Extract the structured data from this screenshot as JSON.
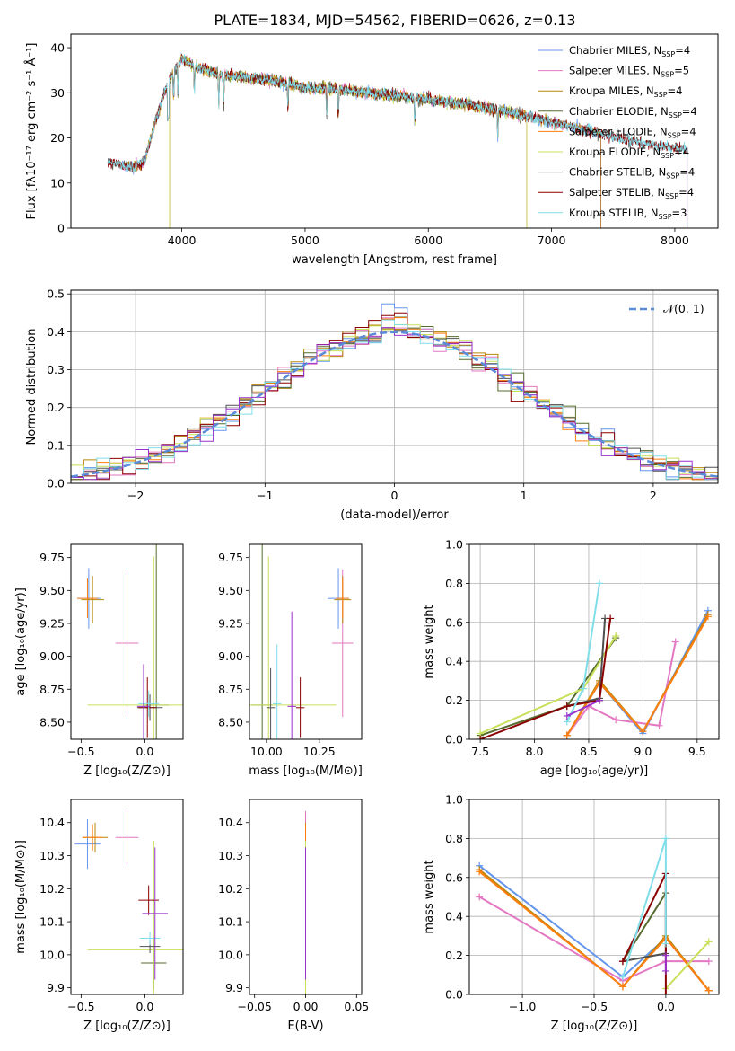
{
  "title": "PLATE=1834, MJD=54562, FIBERID=0626, z=0.13",
  "colors": {
    "series": [
      "#6495ed",
      "#e377c2",
      "#b8860b",
      "#556b2f",
      "#ff7f0e",
      "#c8e05a",
      "#505050",
      "#8b0000",
      "#80deea",
      "#9932cc"
    ],
    "grid": "#b0b0b0",
    "normal_curve": "#5b8bd8"
  },
  "chart_data": [
    {
      "id": "spectrum",
      "type": "line",
      "title": "PLATE=1834, MJD=54562, FIBERID=0626, z=0.13",
      "xlabel": "wavelength [Angstrom, rest frame]",
      "ylabel": "Flux [fλ10⁻¹⁷ erg cm⁻² s⁻¹ Å⁻¹]",
      "xlim": [
        3100,
        8350
      ],
      "ylim": [
        0,
        43
      ],
      "xticks": [
        "4000",
        "5000",
        "6000",
        "7000",
        "8000"
      ],
      "yticks": [
        "0",
        "10",
        "20",
        "30",
        "40"
      ],
      "grid": false,
      "legend_position": "top-right",
      "continuum": {
        "x": [
          3400,
          3500,
          3600,
          3700,
          3800,
          3900,
          4000,
          4100,
          4300,
          4500,
          4800,
          5000,
          5200,
          5500,
          6000,
          6300,
          6600,
          7000,
          7400,
          7800,
          8100
        ],
        "y": [
          14.5,
          14,
          13.5,
          15,
          25,
          33,
          37.5,
          36,
          34,
          33.5,
          32.5,
          31,
          31,
          30,
          28.5,
          27.5,
          26,
          23.5,
          21,
          18.5,
          17.5
        ]
      },
      "series": [
        {
          "name": "Chabrier MILES",
          "nssp": "4",
          "color_index": 0,
          "x_range": [
            3500,
            7400
          ]
        },
        {
          "name": "Salpeter MILES",
          "nssp": "5",
          "color_index": 1,
          "x_range": [
            3500,
            7400
          ]
        },
        {
          "name": "Kroupa MILES",
          "nssp": "4",
          "color_index": 2,
          "x_range": [
            3500,
            7400
          ]
        },
        {
          "name": "Chabrier ELODIE",
          "nssp": "4",
          "color_index": 3,
          "x_range": [
            3900,
            6800
          ]
        },
        {
          "name": "Salpeter ELODIE",
          "nssp": "4",
          "color_index": 4,
          "x_range": [
            3900,
            6800
          ]
        },
        {
          "name": "Kroupa ELODIE",
          "nssp": "4",
          "color_index": 5,
          "x_range": [
            3900,
            6800
          ]
        },
        {
          "name": "Chabrier STELIB",
          "nssp": "4",
          "color_index": 6,
          "x_range": [
            3400,
            8100
          ]
        },
        {
          "name": "Salpeter STELIB",
          "nssp": "4",
          "color_index": 7,
          "x_range": [
            3400,
            8100
          ]
        },
        {
          "name": "Kroupa STELIB",
          "nssp": "3",
          "color_index": 8,
          "x_range": [
            3400,
            8100
          ]
        }
      ]
    },
    {
      "id": "residuals",
      "type": "histogram",
      "xlabel": "(data-model)/error",
      "ylabel": "Normed distribution",
      "xlim": [
        -2.5,
        2.5
      ],
      "ylim": [
        0,
        0.51
      ],
      "xticks": [
        "−2",
        "−1",
        "0",
        "1",
        "2"
      ],
      "yticks": [
        "0.0",
        "0.1",
        "0.2",
        "0.3",
        "0.4",
        "0.5"
      ],
      "grid": true,
      "legend_position": "top-right",
      "legend_label": "𝒩(0, 1)",
      "bins": 50,
      "bin_range": [
        -2.5,
        2.5
      ],
      "peak_spike": [
        0.49,
        0.45,
        0.43,
        0.47,
        0.46,
        0.44,
        0.42,
        0.48,
        0.45,
        0.43
      ]
    },
    {
      "id": "age_vs_Z",
      "type": "scatter",
      "xlabel": "Z [log₁₀(Z/Z⊙)]",
      "ylabel": "age  [log₁₀(age/yr)]",
      "xlim": [
        -0.58,
        0.3
      ],
      "ylim": [
        8.37,
        9.85
      ],
      "xticks": [
        "−0.5",
        "0.0"
      ],
      "yticks": [
        "8.50",
        "8.75",
        "9.00",
        "9.25",
        "9.50",
        "9.75"
      ],
      "points": [
        {
          "x": -0.44,
          "y": 9.44,
          "xerr": 0.09,
          "yerr": 0.23,
          "color_index": 0
        },
        {
          "x": -0.14,
          "y": 9.1,
          "xerr": 0.09,
          "yerr": 0.56,
          "color_index": 1
        },
        {
          "x": -0.41,
          "y": 9.43,
          "xerr": 0.09,
          "yerr": 0.18,
          "color_index": 2
        },
        {
          "x": 0.09,
          "y": 8.63,
          "xerr": 0.1,
          "yerr": 1.23,
          "color_index": 3
        },
        {
          "x": -0.45,
          "y": 9.44,
          "xerr": 0.08,
          "yerr": 0.15,
          "color_index": 4
        },
        {
          "x": 0.07,
          "y": 8.63,
          "xerr": 0.52,
          "yerr": 1.13,
          "color_index": 5
        },
        {
          "x": 0.04,
          "y": 8.61,
          "xerr": 0.1,
          "yerr": 0.1,
          "color_index": 6
        },
        {
          "x": 0.02,
          "y": 8.61,
          "xerr": 0.07,
          "yerr": 0.23,
          "color_index": 7
        },
        {
          "x": 0.03,
          "y": 8.64,
          "xerr": 0.08,
          "yerr": 0.1,
          "color_index": 8
        },
        {
          "x": -0.01,
          "y": 8.62,
          "xerr": 0.05,
          "yerr": 0.32,
          "color_index": 9
        }
      ]
    },
    {
      "id": "age_vs_mass",
      "type": "scatter",
      "xlabel": "mass [log₁₀(M/M⊙)]",
      "ylabel": "",
      "xlim": [
        9.92,
        10.45
      ],
      "ylim": [
        8.37,
        9.85
      ],
      "xticks": [
        "10.00",
        "10.25"
      ],
      "yticks": [
        "8.50",
        "8.75",
        "9.00",
        "9.25",
        "9.50",
        "9.75"
      ],
      "points": [
        {
          "x": 10.34,
          "y": 9.44,
          "xerr": 0.05,
          "yerr": 0.23,
          "color_index": 0
        },
        {
          "x": 10.36,
          "y": 9.1,
          "xerr": 0.05,
          "yerr": 0.56,
          "color_index": 1
        },
        {
          "x": 10.36,
          "y": 9.43,
          "xerr": 0.04,
          "yerr": 0.18,
          "color_index": 2
        },
        {
          "x": 9.98,
          "y": 8.63,
          "xerr": 0.05,
          "yerr": 1.23,
          "color_index": 3
        },
        {
          "x": 10.36,
          "y": 9.44,
          "xerr": 0.03,
          "yerr": 0.15,
          "color_index": 4
        },
        {
          "x": 10.01,
          "y": 8.63,
          "xerr": 0.32,
          "yerr": 1.13,
          "color_index": 5
        },
        {
          "x": 10.02,
          "y": 8.61,
          "xerr": 0.02,
          "yerr": 0.3,
          "color_index": 6
        },
        {
          "x": 10.16,
          "y": 8.61,
          "xerr": 0.02,
          "yerr": 0.23,
          "color_index": 7
        },
        {
          "x": 10.05,
          "y": 8.64,
          "xerr": 0.02,
          "yerr": 0.45,
          "color_index": 8
        },
        {
          "x": 10.12,
          "y": 8.62,
          "xerr": 0.02,
          "yerr": 0.72,
          "color_index": 9
        }
      ]
    },
    {
      "id": "weight_vs_age",
      "type": "line",
      "xlabel": "age  [log₁₀(age/yr)]",
      "ylabel": "mass weight",
      "xlim": [
        7.4,
        9.7
      ],
      "ylim": [
        0,
        1
      ],
      "xticks": [
        "7.5",
        "8.0",
        "8.5",
        "9.0",
        "9.5"
      ],
      "yticks": [
        "0.0",
        "0.2",
        "0.4",
        "0.6",
        "0.8",
        "1.0"
      ],
      "grid": true,
      "series": [
        {
          "color_index": 0,
          "x": [
            8.3,
            8.6,
            9.0,
            9.6
          ],
          "y": [
            0.02,
            0.29,
            0.03,
            0.66
          ]
        },
        {
          "color_index": 1,
          "x": [
            8.3,
            8.5,
            8.75,
            9.15,
            9.3
          ],
          "y": [
            0.02,
            0.17,
            0.1,
            0.07,
            0.5
          ]
        },
        {
          "color_index": 2,
          "x": [
            8.3,
            8.6,
            9.0,
            9.6
          ],
          "y": [
            0.02,
            0.3,
            0.04,
            0.64
          ]
        },
        {
          "color_index": 3,
          "x": [
            7.5,
            8.3,
            8.75
          ],
          "y": [
            0.02,
            0.17,
            0.52
          ]
        },
        {
          "color_index": 4,
          "x": [
            8.3,
            8.6,
            9.0,
            9.6
          ],
          "y": [
            0.02,
            0.29,
            0.04,
            0.63
          ]
        },
        {
          "color_index": 5,
          "x": [
            7.5,
            8.45,
            8.75
          ],
          "y": [
            0.03,
            0.26,
            0.53
          ]
        },
        {
          "color_index": 6,
          "x": [
            8.3,
            8.6,
            8.65
          ],
          "y": [
            0.17,
            0.21,
            0.62
          ]
        },
        {
          "color_index": 7,
          "x": [
            7.5,
            8.3,
            8.6,
            8.7
          ],
          "y": [
            0.0,
            0.17,
            0.2,
            0.62
          ]
        },
        {
          "color_index": 8,
          "x": [
            8.3,
            8.45,
            8.6
          ],
          "y": [
            0.09,
            0.26,
            0.8
          ]
        },
        {
          "color_index": 9,
          "x": [
            8.3,
            8.6
          ],
          "y": [
            0.12,
            0.2
          ]
        }
      ]
    },
    {
      "id": "mass_vs_Z",
      "type": "scatter",
      "xlabel": "Z [log₁₀(Z/Z⊙)]",
      "ylabel": "mass [log₁₀(M/M⊙)]",
      "xlim": [
        -0.58,
        0.3
      ],
      "ylim": [
        9.88,
        10.47
      ],
      "xticks": [
        "−0.5",
        "0.0"
      ],
      "yticks": [
        "9.9",
        "10.0",
        "10.1",
        "10.2",
        "10.3",
        "10.4"
      ],
      "points": [
        {
          "x": -0.45,
          "y": 10.335,
          "xerr": 0.1,
          "yerr": 0.075,
          "color_index": 0
        },
        {
          "x": -0.14,
          "y": 10.355,
          "xerr": 0.09,
          "yerr": 0.08,
          "color_index": 1
        },
        {
          "x": -0.39,
          "y": 10.355,
          "xerr": 0.1,
          "yerr": 0.045,
          "color_index": 2
        },
        {
          "x": 0.07,
          "y": 9.975,
          "xerr": 0.1,
          "yerr": 0.08,
          "color_index": 3
        },
        {
          "x": -0.41,
          "y": 10.355,
          "xerr": 0.08,
          "yerr": 0.04,
          "color_index": 4
        },
        {
          "x": 0.07,
          "y": 10.015,
          "xerr": 0.52,
          "yerr": 0.33,
          "color_index": 5
        },
        {
          "x": 0.04,
          "y": 10.025,
          "xerr": 0.08,
          "yerr": 0.02,
          "color_index": 6
        },
        {
          "x": 0.03,
          "y": 10.165,
          "xerr": 0.08,
          "yerr": 0.045,
          "color_index": 7
        },
        {
          "x": 0.04,
          "y": 10.05,
          "xerr": 0.08,
          "yerr": 0.02,
          "color_index": 8
        },
        {
          "x": 0.08,
          "y": 10.125,
          "xerr": 0.1,
          "yerr": 0.2,
          "color_index": 9
        }
      ]
    },
    {
      "id": "mass_vs_ebv",
      "type": "scatter",
      "xlabel": "E(B-V)",
      "ylabel": "",
      "xlim": [
        -0.055,
        0.055
      ],
      "ylim": [
        9.88,
        10.47
      ],
      "xticks": [
        "−0.05",
        "0.00",
        "0.05"
      ],
      "yticks": [
        "9.9",
        "10.0",
        "10.1",
        "10.2",
        "10.3",
        "10.4"
      ],
      "points": [
        {
          "x": 0.0,
          "y": 10.335,
          "xerr": 0.0,
          "yerr": 0.075,
          "color_index": 0
        },
        {
          "x": 0.0,
          "y": 10.355,
          "xerr": 0.0,
          "yerr": 0.08,
          "color_index": 1
        },
        {
          "x": 0.0,
          "y": 10.355,
          "xerr": 0.0,
          "yerr": 0.045,
          "color_index": 2
        },
        {
          "x": 0.0,
          "y": 9.975,
          "xerr": 0.0,
          "yerr": 0.08,
          "color_index": 3
        },
        {
          "x": 0.0,
          "y": 10.355,
          "xerr": 0.0,
          "yerr": 0.04,
          "color_index": 4
        },
        {
          "x": 0.0,
          "y": 10.015,
          "xerr": 0.0,
          "yerr": 0.33,
          "color_index": 5
        },
        {
          "x": 0.0,
          "y": 10.025,
          "xerr": 0.0,
          "yerr": 0.02,
          "color_index": 6
        },
        {
          "x": 0.0,
          "y": 10.165,
          "xerr": 0.0,
          "yerr": 0.045,
          "color_index": 7
        },
        {
          "x": 0.0,
          "y": 10.05,
          "xerr": 0.0,
          "yerr": 0.02,
          "color_index": 8
        },
        {
          "x": 0.0,
          "y": 10.125,
          "xerr": 0.0,
          "yerr": 0.2,
          "color_index": 9
        }
      ]
    },
    {
      "id": "weight_vs_Z",
      "type": "line",
      "xlabel": "Z [log₁₀(Z/Z⊙)]",
      "ylabel": "mass weight",
      "xlim": [
        -1.37,
        0.37
      ],
      "ylim": [
        0,
        1
      ],
      "xticks": [
        "−1.0",
        "−0.5",
        "0.0"
      ],
      "yticks": [
        "0.0",
        "0.2",
        "0.4",
        "0.6",
        "0.8",
        "1.0"
      ],
      "grid": true,
      "series": [
        {
          "color_index": 0,
          "x": [
            -1.3,
            -0.3,
            0.0,
            0.3
          ],
          "y": [
            0.66,
            0.09,
            0.29,
            0.02
          ]
        },
        {
          "color_index": 1,
          "x": [
            -1.3,
            -0.3,
            0.0,
            0.3
          ],
          "y": [
            0.5,
            0.07,
            0.17,
            0.17
          ]
        },
        {
          "color_index": 2,
          "x": [
            -1.3,
            -0.3,
            0.0,
            0.3
          ],
          "y": [
            0.64,
            0.04,
            0.3,
            0.02
          ]
        },
        {
          "color_index": 3,
          "x": [
            -0.3,
            0.0
          ],
          "y": [
            0.17,
            0.52
          ]
        },
        {
          "color_index": 4,
          "x": [
            -1.3,
            -0.3,
            0.0,
            0.3
          ],
          "y": [
            0.63,
            0.04,
            0.29,
            0.02
          ]
        },
        {
          "color_index": 5,
          "x": [
            0.0,
            0.3
          ],
          "y": [
            0.03,
            0.27
          ]
        },
        {
          "color_index": 6,
          "x": [
            -0.3,
            0.0,
            0.0
          ],
          "y": [
            0.17,
            0.21,
            0.62
          ]
        },
        {
          "color_index": 7,
          "x": [
            -0.3,
            0.0,
            0.0
          ],
          "y": [
            0.17,
            0.62,
            0.0
          ]
        },
        {
          "color_index": 8,
          "x": [
            -0.3,
            0.0,
            0.0
          ],
          "y": [
            0.09,
            0.8,
            0.26
          ]
        },
        {
          "color_index": 9,
          "x": [
            0.0,
            0.0
          ],
          "y": [
            0.12,
            0.2
          ]
        }
      ]
    }
  ]
}
